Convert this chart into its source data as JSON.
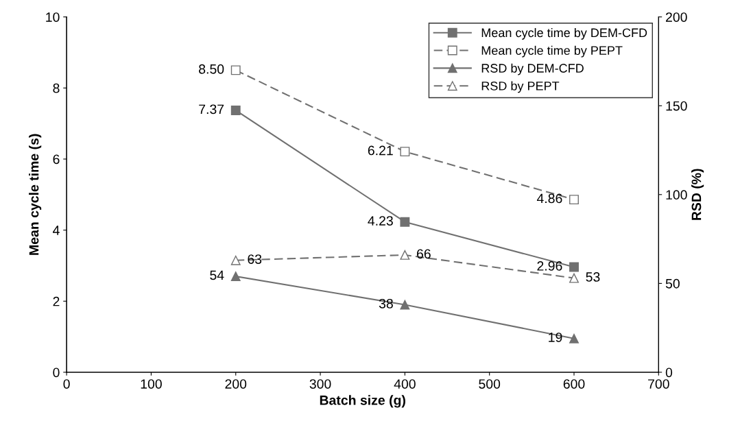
{
  "chart_data": {
    "type": "line",
    "xlabel": "Batch size (g)",
    "ylabel": "Mean cycle time (s)",
    "y2label": "RSD (%)",
    "x": [
      200,
      400,
      600
    ],
    "xlim": [
      0,
      700
    ],
    "xticks": [
      0,
      100,
      200,
      300,
      400,
      500,
      600,
      700
    ],
    "ylim": [
      0,
      10
    ],
    "yticks": [
      0,
      2,
      4,
      6,
      8,
      10
    ],
    "y2lim": [
      0,
      200
    ],
    "y2ticks": [
      0,
      50,
      100,
      150,
      200
    ],
    "grid": false,
    "legend": "top right",
    "series": [
      {
        "name": "Mean cycle time by DEM-CFD",
        "color": "#707070",
        "values": [
          7.37,
          4.23,
          2.96
        ],
        "value_labels": [
          "7.37",
          "4.23",
          "2.96"
        ],
        "marker": "square",
        "line_style": "solid"
      },
      {
        "name": "Mean cycle time by PEPT",
        "color": "#707070",
        "values": [
          8.5,
          6.21,
          4.86
        ],
        "value_labels": [
          "8.50",
          "6.21",
          "4.86"
        ],
        "marker": "square",
        "line_style": "dashed"
      },
      {
        "name": "RSD by DEM-CFD",
        "color": "#707070",
        "values": [
          54,
          38,
          19
        ],
        "value_labels": [
          "54",
          "38",
          "19"
        ],
        "marker": "triangle",
        "line_style": "solid",
        "axis": "y2"
      },
      {
        "name": "RSD by PEPT",
        "color": "#707070",
        "values": [
          63,
          66,
          53
        ],
        "value_labels": [
          "63",
          "66",
          "53"
        ],
        "marker": "triangle",
        "line_style": "dashed",
        "axis": "y2"
      }
    ]
  }
}
